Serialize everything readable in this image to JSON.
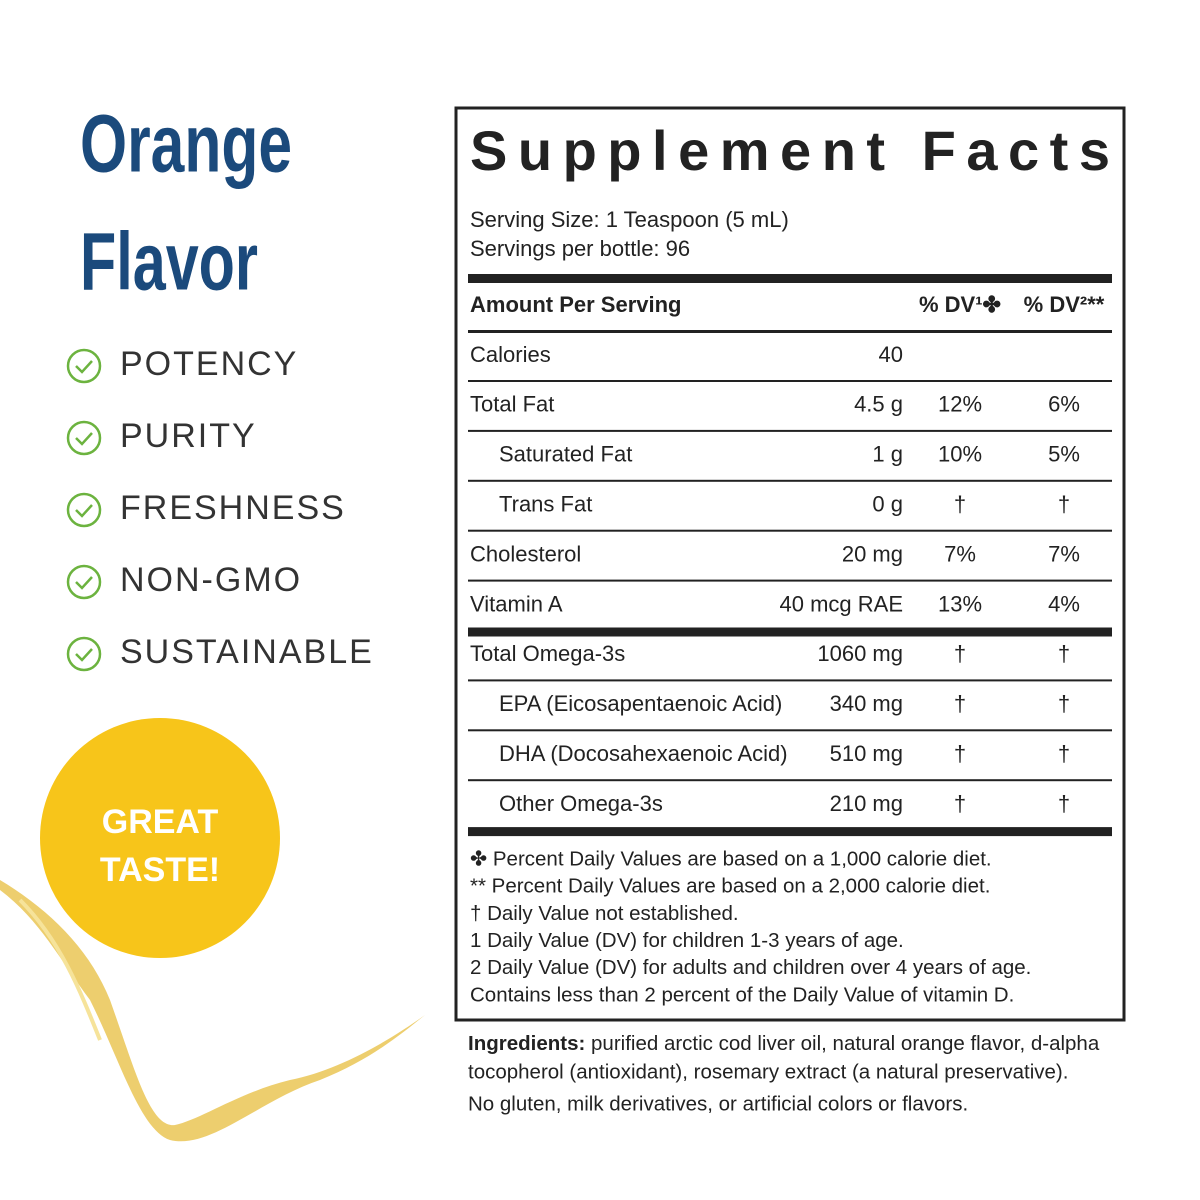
{
  "hero": {
    "title_lines": [
      "Orange",
      "Flavor"
    ],
    "features": [
      "POTENCY",
      "PURITY",
      "FRESHNESS",
      "NON-GMO",
      "SUSTAINABLE"
    ],
    "badge_lines": [
      "GREAT",
      "TASTE!"
    ]
  },
  "facts": {
    "title": "Supplement Facts",
    "serving_size": "Serving Size: 1 Teaspoon (5 mL)",
    "servings": "Servings per bottle: 96",
    "header": {
      "amount": "Amount Per Serving",
      "dv1": "% DV¹✤",
      "dv2": "% DV²**"
    },
    "rows": [
      {
        "name": "Calories",
        "amount": "40"
      },
      {
        "name": "Total Fat",
        "amount": "4.5 g",
        "dv1": "12%",
        "dv2": "6%"
      },
      {
        "name": "Saturated Fat",
        "amount": "1 g",
        "dv1": "10%",
        "dv2": "5%",
        "indent": true
      },
      {
        "name": "Trans Fat",
        "amount": "0 g",
        "dv1": "†",
        "dv2": "†",
        "indent": true
      },
      {
        "name": "Cholesterol",
        "amount": "20 mg",
        "dv1": "7%",
        "dv2": "7%"
      },
      {
        "name": "Vitamin A",
        "amount": "40 mcg RAE",
        "dv1": "13%",
        "dv2": "4%"
      },
      {
        "name": "Total Omega-3s",
        "amount": "1060 mg",
        "dv1": "†",
        "dv2": "†"
      },
      {
        "name": "EPA (Eicosapentaenoic Acid)",
        "amount": "340 mg",
        "dv1": "†",
        "dv2": "†",
        "indent": true
      },
      {
        "name": "DHA (Docosahexaenoic Acid)",
        "amount": "510 mg",
        "dv1": "†",
        "dv2": "†",
        "indent": true
      },
      {
        "name": "Other Omega-3s",
        "amount": "210 mg",
        "dv1": "†",
        "dv2": "†",
        "indent": true
      }
    ],
    "footnotes": [
      "✤ Percent Daily Values are based on a 1,000 calorie diet.",
      "** Percent Daily Values are based on a 2,000 calorie diet.",
      "†  Daily Value not established.",
      "1  Daily Value (DV) for children 1-3 years of age.",
      "2  Daily Value (DV) for adults and children over 4 years of age.",
      "Contains less than 2 percent of the Daily Value of vitamin D."
    ]
  },
  "ingredients": {
    "label": "Ingredients:",
    "lines": [
      " purified arctic cod liver oil, natural orange flavor, d-alpha",
      "tocopherol (antioxidant), rosemary extract (a natural preservative)."
    ],
    "note": "No gluten, milk derivatives, or artificial colors or flavors."
  }
}
